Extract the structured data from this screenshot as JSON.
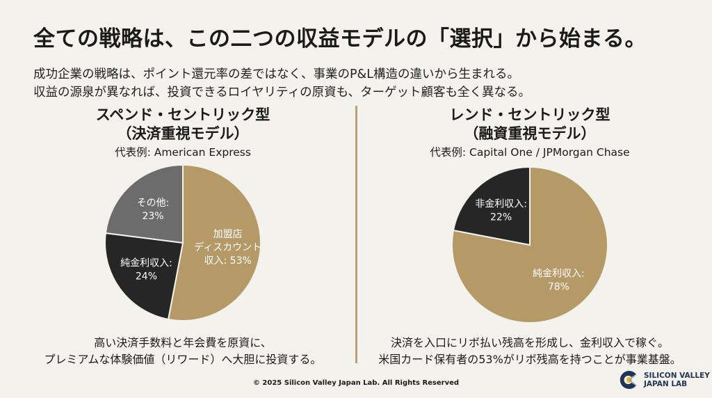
{
  "title": "全ての戦略は、この二つの収益モデルの「選択」から始まる。",
  "subtitle_lines": [
    "成功企業の戦略は、ポイント還元率の差ではなく、事業のP&L構造の違いから生まれる。",
    "収益の源泉が異なれば、投資できるロイヤリティの原資も、ターゲット顧客も全く異なる。"
  ],
  "left": {
    "title1": "スペンド・セントリック型",
    "title2": "（決済重視モデル）",
    "example": "代表例: American Express",
    "desc1": "高い決済手数料と年会費を原資に、",
    "desc2": "プレミアムな体験価値（リワード）へ大胆に投資する。"
  },
  "right": {
    "title1": "レンド・セントリック型",
    "title2": "（融資重視モデル）",
    "example": "代表例: Capital One / JPMorgan Chase",
    "desc1": "決済を入口にリボ払い残高を形成し、金利収入で稼ぐ。",
    "desc2": "米国カード保有者の53%がリボ残高を持つことが事業基盤。"
  },
  "chart_data": [
    {
      "type": "pie",
      "slices": [
        {
          "label_lines": [
            "加盟店",
            "ディスカウント",
            "収入: 53%"
          ],
          "value": 53,
          "color": "#b59a68"
        },
        {
          "label_lines": [
            "純金利収入:",
            "24%"
          ],
          "value": 24,
          "color": "#262626"
        },
        {
          "label_lines": [
            "その他:",
            "23%"
          ],
          "value": 23,
          "color": "#6c6c6c"
        }
      ]
    },
    {
      "type": "pie",
      "slices": [
        {
          "label_lines": [
            "純金利収入:",
            "78%"
          ],
          "value": 78,
          "color": "#b59a68"
        },
        {
          "label_lines": [
            "非金利収入:",
            "22%"
          ],
          "value": 22,
          "color": "#262626"
        }
      ]
    }
  ],
  "footer": "© 2025 Silicon Valley Japan Lab. All Rights Reserved",
  "logo": {
    "line1": "SILICON VALLEY",
    "line2": "JAPAN LAB"
  }
}
